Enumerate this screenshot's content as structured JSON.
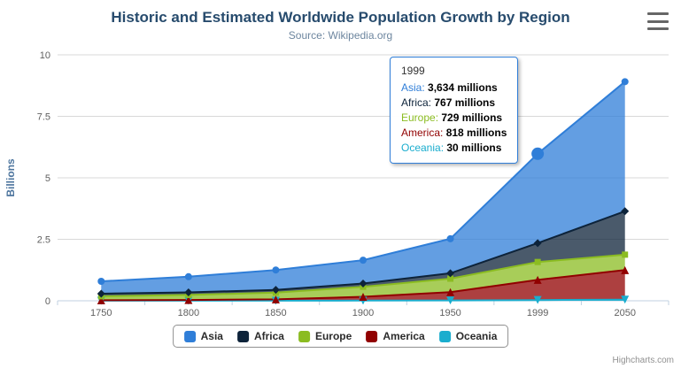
{
  "header": {
    "title": "Historic and Estimated Worldwide Population Growth by Region",
    "subtitle": "Source: Wikipedia.org"
  },
  "chart_data": {
    "type": "area",
    "stacked": true,
    "categories": [
      "1750",
      "1800",
      "1850",
      "1900",
      "1950",
      "1999",
      "2050"
    ],
    "series": [
      {
        "name": "Asia",
        "color": "#2f7ed8",
        "marker": "circle",
        "values": [
          502,
          635,
          809,
          947,
          1402,
          3634,
          5268
        ]
      },
      {
        "name": "Africa",
        "color": "#0d233a",
        "marker": "diamond",
        "values": [
          106,
          107,
          111,
          133,
          221,
          767,
          1766
        ]
      },
      {
        "name": "Europe",
        "color": "#8bbc21",
        "marker": "square",
        "values": [
          163,
          203,
          276,
          408,
          547,
          729,
          628
        ]
      },
      {
        "name": "America",
        "color": "#910000",
        "marker": "triangle",
        "values": [
          18,
          31,
          54,
          156,
          339,
          818,
          1201
        ]
      },
      {
        "name": "Oceania",
        "color": "#1aadce",
        "marker": "triangle-down",
        "values": [
          2,
          2,
          2,
          6,
          13,
          30,
          46
        ]
      }
    ],
    "values_unit": "millions",
    "ylabel": "Billions",
    "ylim": [
      0,
      10
    ],
    "yticks": [
      0,
      2.5,
      5,
      7.5,
      10
    ],
    "grid": true,
    "legend_position": "bottom",
    "hover": {
      "category": "1999",
      "series": "Asia"
    }
  },
  "tooltip": {
    "header": "1999",
    "rows": [
      {
        "label": "Asia",
        "color": "#2f7ed8",
        "value": "3,634 millions"
      },
      {
        "label": "Africa",
        "color": "#0d233a",
        "value": "767 millions"
      },
      {
        "label": "Europe",
        "color": "#8bbc21",
        "value": "729 millions"
      },
      {
        "label": "America",
        "color": "#910000",
        "value": "818 millions"
      },
      {
        "label": "Oceania",
        "color": "#1aadce",
        "value": "30 millions"
      }
    ]
  },
  "legend": {
    "items": [
      {
        "label": "Asia",
        "color": "#2f7ed8"
      },
      {
        "label": "Africa",
        "color": "#0d233a"
      },
      {
        "label": "Europe",
        "color": "#8bbc21"
      },
      {
        "label": "America",
        "color": "#910000"
      },
      {
        "label": "Oceania",
        "color": "#1aadce"
      }
    ]
  },
  "credits": {
    "label": "Highcharts.com"
  },
  "icons": {
    "context_menu": "hamburger-icon"
  }
}
